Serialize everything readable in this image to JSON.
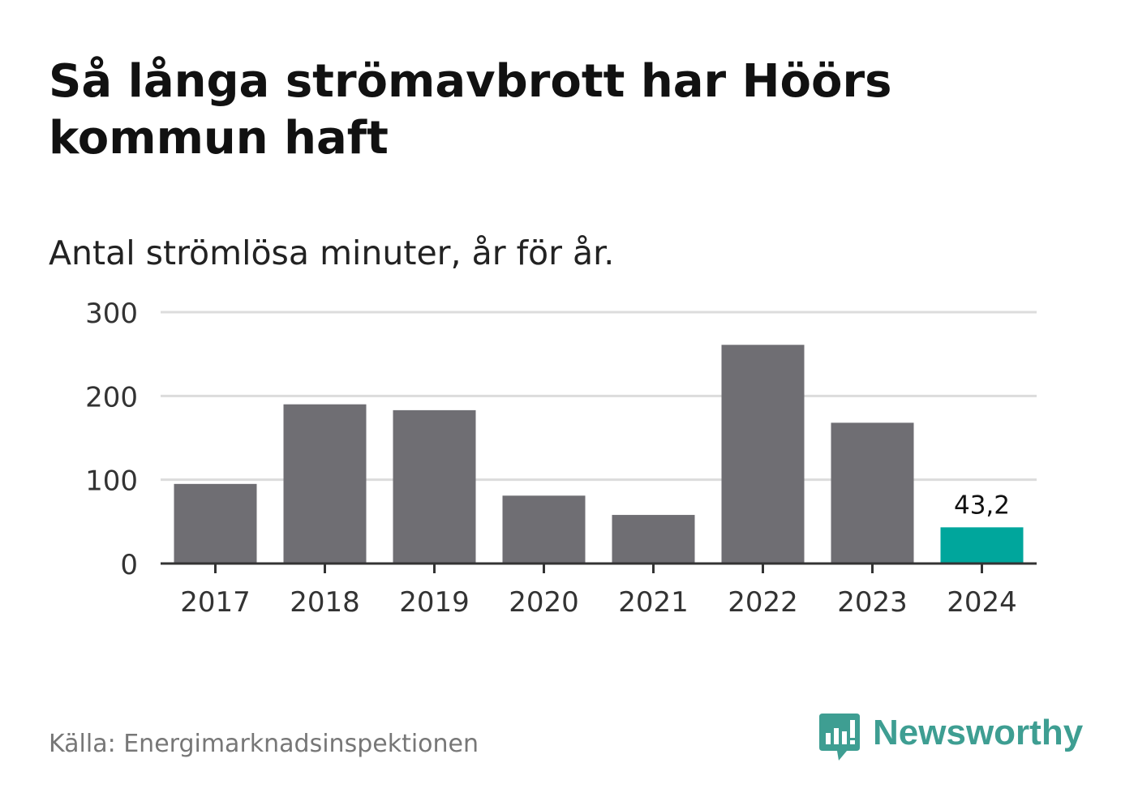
{
  "header": {
    "title": "Så långa strömavbrott har Höörs kommun haft",
    "subtitle": "Antal strömlösa minuter, år för år."
  },
  "footer": {
    "source": "Källa: Energimarknadsinspektionen",
    "brand": "Newsworthy",
    "brand_icon": "bar-chart-speech-bubble-icon"
  },
  "colors": {
    "bar": "#6f6e73",
    "highlight": "#00a69c",
    "grid": "#dcdcdc",
    "axis": "#333333",
    "brand": "#3e9e92"
  },
  "chart_data": {
    "type": "bar",
    "categories": [
      "2017",
      "2018",
      "2019",
      "2020",
      "2021",
      "2022",
      "2023",
      "2024"
    ],
    "values": [
      95,
      190,
      183,
      81,
      58,
      261,
      168,
      43.2
    ],
    "highlight_index": 7,
    "data_labels": [
      {
        "index": 7,
        "text": "43,2"
      }
    ],
    "ylim": [
      0,
      300
    ],
    "yticks": [
      0,
      100,
      200,
      300
    ],
    "ytick_labels": [
      "0",
      "100",
      "200",
      "300"
    ],
    "xlabel": "",
    "ylabel": "",
    "grid": true,
    "legend": "none"
  }
}
